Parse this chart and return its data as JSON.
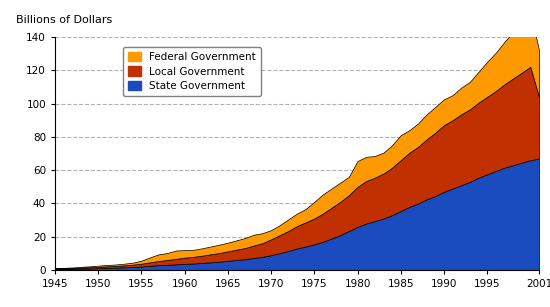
{
  "years": [
    1945,
    1946,
    1947,
    1948,
    1949,
    1950,
    1951,
    1952,
    1953,
    1954,
    1955,
    1956,
    1957,
    1958,
    1959,
    1960,
    1961,
    1962,
    1963,
    1964,
    1965,
    1966,
    1967,
    1968,
    1969,
    1970,
    1971,
    1972,
    1973,
    1974,
    1975,
    1976,
    1977,
    1978,
    1979,
    1980,
    1981,
    1982,
    1983,
    1984,
    1985,
    1986,
    1987,
    1988,
    1989,
    1990,
    1991,
    1992,
    1993,
    1994,
    1995,
    1996,
    1997,
    1998,
    1999,
    2000,
    2001
  ],
  "state": [
    0.5,
    0.6,
    0.7,
    0.9,
    1.0,
    1.2,
    1.4,
    1.5,
    1.7,
    1.9,
    2.2,
    2.6,
    3.0,
    3.2,
    3.5,
    3.8,
    4.0,
    4.3,
    4.7,
    5.1,
    5.6,
    6.1,
    6.6,
    7.3,
    8.0,
    9.0,
    10.2,
    11.5,
    13.0,
    14.2,
    15.5,
    17.0,
    19.0,
    21.0,
    23.5,
    26.0,
    28.0,
    29.5,
    31.0,
    33.0,
    35.5,
    38.0,
    40.0,
    42.5,
    44.5,
    47.0,
    49.0,
    51.0,
    53.0,
    55.5,
    57.5,
    59.5,
    61.5,
    63.0,
    64.5,
    66.0,
    67.0
  ],
  "local": [
    0.4,
    0.4,
    0.5,
    0.6,
    0.7,
    0.8,
    0.9,
    1.0,
    1.2,
    1.4,
    1.7,
    2.1,
    2.5,
    2.9,
    3.3,
    3.7,
    4.0,
    4.4,
    4.8,
    5.2,
    5.7,
    6.2,
    6.7,
    7.5,
    8.2,
    9.5,
    10.8,
    12.0,
    13.5,
    14.5,
    15.5,
    17.0,
    18.5,
    20.0,
    21.5,
    24.0,
    25.5,
    26.0,
    27.0,
    28.5,
    30.5,
    32.5,
    34.0,
    36.0,
    38.0,
    40.0,
    41.0,
    42.5,
    43.5,
    45.0,
    46.5,
    48.0,
    50.0,
    52.0,
    54.0,
    56.0,
    37.0
  ],
  "federal": [
    0.5,
    0.4,
    0.4,
    0.5,
    0.6,
    0.7,
    0.8,
    0.9,
    1.0,
    1.2,
    1.8,
    3.0,
    4.0,
    4.2,
    5.0,
    4.5,
    4.2,
    4.4,
    4.7,
    5.0,
    5.2,
    5.6,
    6.0,
    6.5,
    6.0,
    5.5,
    6.0,
    7.0,
    7.5,
    8.0,
    10.0,
    11.5,
    11.5,
    11.5,
    11.0,
    15.5,
    14.5,
    13.0,
    12.5,
    13.5,
    15.0,
    13.5,
    14.0,
    15.0,
    15.5,
    15.5,
    15.0,
    16.0,
    16.5,
    18.5,
    21.0,
    23.0,
    25.5,
    28.0,
    30.0,
    33.0,
    28.0
  ],
  "state_color": "#1a4bbf",
  "local_color": "#c03000",
  "federal_color": "#ff9900",
  "ylabel": "Billions of Dollars",
  "ylim": [
    0,
    140
  ],
  "xlim": [
    1945,
    2001
  ],
  "yticks": [
    0,
    20,
    40,
    60,
    80,
    100,
    120,
    140
  ],
  "xticks": [
    1945,
    1950,
    1955,
    1960,
    1965,
    1970,
    1975,
    1980,
    1985,
    1990,
    1995,
    2001
  ],
  "legend_labels": [
    "Federal Government",
    "Local Government",
    "State Government"
  ],
  "legend_colors": [
    "#ff9900",
    "#c03000",
    "#1a4bbf"
  ]
}
